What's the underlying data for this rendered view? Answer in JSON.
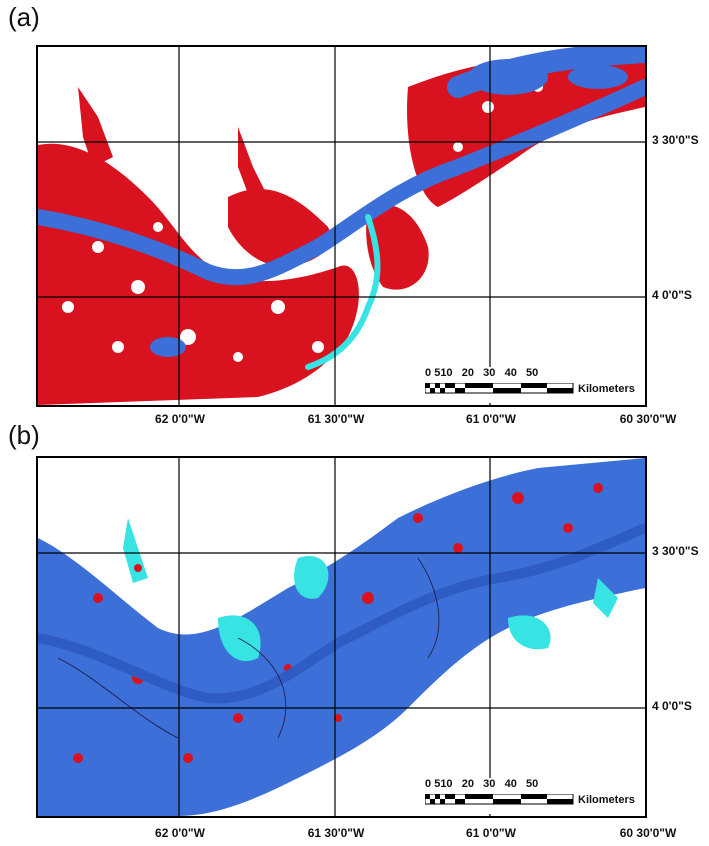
{
  "panels": [
    {
      "label": "(a)",
      "lat_labels": [
        "3 30'0\"S",
        "4 0'0\"S"
      ],
      "lon_labels": [
        "62 0'0\"W",
        "61 30'0\"W",
        "61 0'0\"W",
        "60 30'0\"W"
      ],
      "scale_numbers": [
        "0",
        "5",
        "10",
        "20",
        "30",
        "40",
        "50"
      ],
      "scale_unit": "Kilometers"
    },
    {
      "label": "(b)",
      "lat_labels": [
        "3 30'0\"S",
        "4 0'0\"S"
      ],
      "lon_labels": [
        "62 0'0\"W",
        "61 30'0\"W",
        "61 0'0\"W",
        "60 30'0\"W"
      ],
      "scale_numbers": [
        "0",
        "5",
        "10",
        "20",
        "30",
        "40",
        "50"
      ],
      "scale_unit": "Kilometers"
    }
  ],
  "colors": {
    "open_water": "#3c6fd8",
    "flooded_class_red": "#d8121e",
    "flooded_class_cyan": "#37e3e3",
    "background": "#ffffff",
    "grid": "#000000"
  }
}
